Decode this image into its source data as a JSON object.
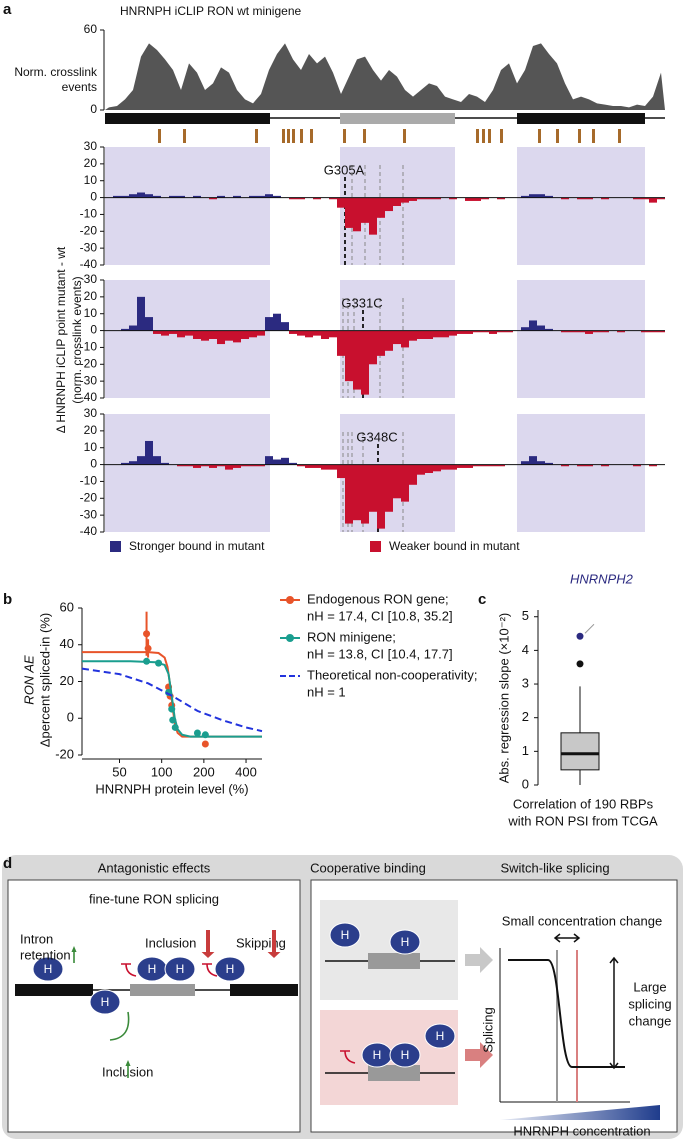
{
  "panel_labels": [
    "a",
    "b",
    "c",
    "d"
  ],
  "chart_data": [
    {
      "type": "area",
      "title": "HNRNPH iCLIP RON wt minigene",
      "ylabel": [
        "Norm. crosslink",
        "events"
      ],
      "ylim": [
        0,
        60
      ],
      "yticks": [
        0,
        60
      ],
      "color": "#555555",
      "values": [
        2,
        3,
        8,
        15,
        40,
        50,
        45,
        38,
        30,
        15,
        35,
        28,
        15,
        20,
        32,
        28,
        15,
        8,
        5,
        12,
        30,
        42,
        50,
        38,
        30,
        42,
        35,
        40,
        28,
        12,
        25,
        38,
        40,
        30,
        22,
        30,
        25,
        15,
        10,
        15,
        20,
        18,
        10,
        8,
        6,
        12,
        10,
        6,
        15,
        30,
        35,
        20,
        30,
        48,
        50,
        42,
        35,
        20,
        8,
        10,
        8,
        5,
        4,
        3,
        3,
        2,
        4,
        3,
        10,
        28
      ]
    },
    {
      "type": "diff",
      "label": "G305A",
      "ylabel": [
        "Δ HNRNPH iCLIP point mutant - wt",
        "(norm. crosslink events)"
      ],
      "ylim": [
        -40,
        30
      ],
      "yticks": [
        30,
        20,
        10,
        0,
        -10,
        -20,
        -30,
        -40
      ],
      "colors": [
        "#2b2a80",
        "#c8102e"
      ],
      "values": [
        0,
        1,
        1,
        2,
        3,
        2,
        1,
        0,
        1,
        1,
        0,
        1,
        0,
        -1,
        1,
        0,
        1,
        0,
        1,
        1,
        2,
        1,
        0,
        -1,
        -1,
        0,
        -1,
        0,
        -1,
        -6,
        -18,
        -20,
        -15,
        -22,
        -12,
        -8,
        -5,
        -3,
        -2,
        -1,
        -1,
        -1,
        0,
        -1,
        0,
        -2,
        -2,
        -1,
        0,
        -1,
        0,
        0,
        1,
        2,
        2,
        1,
        0,
        -1,
        0,
        -1,
        -1,
        0,
        -1,
        0,
        0,
        0,
        -1,
        -1,
        -3,
        -1
      ]
    },
    {
      "type": "diff",
      "label": "G331C",
      "ylim": [
        -40,
        30
      ],
      "yticks": [
        30,
        20,
        10,
        0,
        -10,
        -20,
        -30,
        -40
      ],
      "colors": [
        "#2b2a80",
        "#c8102e"
      ],
      "values": [
        0,
        0,
        1,
        3,
        20,
        8,
        -2,
        -3,
        -2,
        -4,
        -3,
        -5,
        -6,
        -5,
        -8,
        -6,
        -7,
        -5,
        -4,
        -3,
        8,
        10,
        5,
        -2,
        -3,
        -4,
        -3,
        -5,
        -4,
        -15,
        -30,
        -35,
        -38,
        -20,
        -15,
        -12,
        -8,
        -10,
        -6,
        -5,
        -5,
        -4,
        -4,
        -3,
        -2,
        -2,
        -1,
        -1,
        -2,
        -1,
        -1,
        0,
        2,
        6,
        3,
        1,
        0,
        -1,
        -1,
        -1,
        -2,
        -1,
        -1,
        0,
        -1,
        0,
        0,
        -1,
        -1,
        -1
      ]
    },
    {
      "type": "diff",
      "label": "G348C",
      "ylim": [
        -40,
        30
      ],
      "yticks": [
        30,
        20,
        10,
        0,
        -10,
        -20,
        -30,
        -40
      ],
      "colors": [
        "#2b2a80",
        "#c8102e"
      ],
      "legend": [
        "Stronger bound in mutant",
        "Weaker bound in mutant"
      ],
      "values": [
        0,
        0,
        1,
        2,
        5,
        14,
        5,
        1,
        0,
        -1,
        -1,
        -2,
        -1,
        -2,
        -1,
        -3,
        -2,
        -1,
        -1,
        -1,
        5,
        3,
        4,
        1,
        -1,
        -2,
        -2,
        -3,
        -3,
        -8,
        -35,
        -33,
        -35,
        -28,
        -38,
        -28,
        -20,
        -22,
        -12,
        -6,
        -5,
        -4,
        -3,
        -3,
        -2,
        -2,
        -1,
        -1,
        -1,
        -1,
        0,
        0,
        2,
        5,
        2,
        1,
        0,
        -1,
        0,
        -1,
        -1,
        0,
        -1,
        0,
        0,
        0,
        -1,
        0,
        -1,
        0
      ]
    },
    {
      "type": "line",
      "xlog": true,
      "xlim": [
        27,
        520
      ],
      "ylim": [
        -20,
        60
      ],
      "xticks": [
        50,
        100,
        200,
        400
      ],
      "yticks": [
        -20,
        0,
        20,
        40,
        60
      ],
      "xlabel": "HNRNPH protein level (%)",
      "ylabel": [
        "RON AE",
        "Δpercent spliced-in (%)"
      ],
      "series": [
        {
          "name": "Endogenous RON gene;",
          "detail": "nH = 17.4, CI [10.8, 35.2]",
          "color": "#e8542a",
          "dash": false,
          "x": [
            78,
            80,
            112,
            115,
            118,
            205
          ],
          "values": [
            46,
            38,
            17,
            12,
            7,
            -14
          ],
          "errors": [
            12,
            5,
            null,
            null,
            null,
            null
          ],
          "fit_x": [
            27,
            60,
            80,
            95,
            105,
            110,
            115,
            120,
            125,
            130,
            140,
            160,
            520
          ],
          "fit_y": [
            36,
            36,
            36,
            35.5,
            33,
            28,
            18,
            5,
            -4,
            -8,
            -10,
            -10,
            -10
          ]
        },
        {
          "name": "RON minigene;",
          "detail": "nH = 13.8, CI [10.4, 17.7]",
          "color": "#1a9e8f",
          "dash": false,
          "x": [
            78,
            95,
            112,
            118,
            120,
            125,
            180,
            205
          ],
          "values": [
            31,
            30,
            14,
            5,
            -1,
            -5,
            -8,
            -9
          ],
          "errors": [
            null,
            null,
            null,
            null,
            null,
            null,
            null,
            null
          ],
          "fit_x": [
            27,
            60,
            90,
            105,
            112,
            118,
            124,
            130,
            140,
            160,
            520
          ],
          "fit_y": [
            31,
            31,
            30.5,
            29,
            24,
            12,
            0,
            -6,
            -9,
            -10,
            -10
          ]
        },
        {
          "name": "Theoretical non-cooperativity;",
          "detail": "nH = 1",
          "color": "#2233dd",
          "dash": true,
          "x": [],
          "values": [],
          "errors": [],
          "fit_x": [
            27,
            50,
            80,
            120,
            180,
            270,
            400,
            520
          ],
          "fit_y": [
            27,
            24,
            19,
            12,
            4,
            -1,
            -5,
            -7
          ]
        }
      ]
    },
    {
      "type": "box",
      "ylim": [
        0,
        5.2
      ],
      "yticks": [
        0,
        1,
        2,
        3,
        4,
        5
      ],
      "ylabel": "Abs. regression slope (×10⁻²)",
      "xlabel": [
        "Correlation of 190 RBPs",
        "with RON PSI from TCGA"
      ],
      "whislo": 0,
      "q1": 0.45,
      "median": 0.93,
      "q3": 1.55,
      "whishi": 2.93,
      "outliers": [
        3.6
      ],
      "color": "#c8c8c8",
      "highlight": {
        "label": "HNRNPH2",
        "value": 4.42,
        "color": "#2b2a80"
      }
    }
  ],
  "diagram": {
    "titles": [
      "Antagonistic effects",
      "Cooperative binding",
      "Switch-like splicing"
    ],
    "subtitle": "fine-tune RON splicing",
    "left_labels": [
      "Intron",
      "retention",
      "Inclusion",
      "Skipping",
      "Inclusion"
    ],
    "protein": "H",
    "switch_labels": [
      "Small concentration change",
      "Large",
      "splicing",
      "change",
      "Splicing",
      "HNRNPH concentration"
    ]
  }
}
